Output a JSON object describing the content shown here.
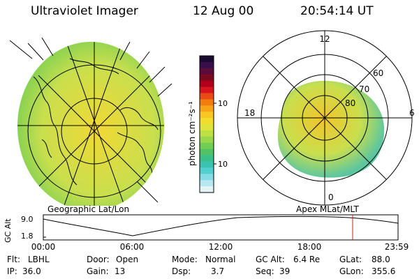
{
  "header": {
    "instrument": "Ultraviolet Imager",
    "date": "12 Aug 00",
    "time": "20:54:14 UT"
  },
  "colorbar": {
    "unit_label": "photon cm⁻²s⁻¹",
    "ticks": [
      "100",
      "10"
    ],
    "colors": [
      "#1a0a2e",
      "#3a0e4a",
      "#5a0b3a",
      "#7a0a1e",
      "#b0001a",
      "#d8141e",
      "#ea4a16",
      "#f27c10",
      "#f7a418",
      "#f9c522",
      "#f2dd2c",
      "#dfe43a",
      "#bfe044",
      "#99d84a",
      "#6fcd52",
      "#4fc265",
      "#3cc08a",
      "#38c4b0",
      "#52cfd0",
      "#86dce6",
      "#b8e9f0",
      "#e4f4f6"
    ]
  },
  "geo_panel": {
    "caption": "Geographic Lat/Lon",
    "colors": {
      "fill": "#c9df4e",
      "core": "#f1d834",
      "rim": "#6fcd52",
      "coast": "#000000"
    }
  },
  "mag_panel": {
    "caption": "Apex MLat/MLT",
    "mlt_labels": {
      "top": "12",
      "left": "18",
      "right": "6",
      "bottom": "0"
    },
    "lat_labels": [
      "60",
      "70",
      "80"
    ],
    "colors": {
      "fill": "#c9df4e",
      "core": "#f2c52a",
      "rim": "#5cc6a0"
    }
  },
  "orbit": {
    "ylabel": "GC Alt",
    "yticks": [
      "9.0",
      "1.8"
    ],
    "xticks": [
      "00:00",
      "06:00",
      "12:00",
      "18:00",
      "23:59"
    ],
    "marker_color": "#d8141e"
  },
  "info": {
    "row1": [
      {
        "key": "Flt:",
        "value": "LBHL"
      },
      {
        "key": "Door:",
        "value": "Open"
      },
      {
        "key": "Mode:",
        "value": "Normal"
      },
      {
        "key": "GC Alt:",
        "value": "6.4 Re"
      },
      {
        "key": "GLat:",
        "value": "88.0"
      }
    ],
    "row2": [
      {
        "key": "IP:",
        "value": "36.0"
      },
      {
        "key": "Gain:",
        "value": "13"
      },
      {
        "key": "Dsp:",
        "value": "3.7"
      },
      {
        "key": "Seq:",
        "value": "39"
      },
      {
        "key": "GLon:",
        "value": "355.6"
      }
    ]
  }
}
